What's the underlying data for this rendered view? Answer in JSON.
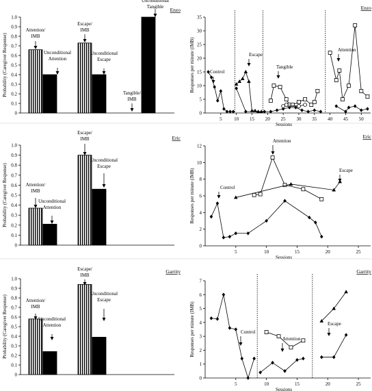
{
  "chart_data": [
    {
      "type": "bar",
      "participant": "Enzo",
      "ylabel": "Probability (Caregiver Response)",
      "ylim": [
        0,
        1.0
      ],
      "yticks": [
        "0",
        "0.1",
        "0.2",
        "0.3",
        "0.4",
        "0.5",
        "0.6",
        "0.7",
        "0.8",
        "0.9",
        "1.0"
      ],
      "bars": [
        {
          "label": "Attention/ IMB",
          "value": 0.66,
          "pattern": "striped"
        },
        {
          "label": "Unconditional Attention",
          "value": 0.4,
          "pattern": "solid"
        },
        {
          "label": "Escape/ IMB",
          "value": 0.73,
          "pattern": "striped"
        },
        {
          "label": "Unconditional Escape",
          "value": 0.4,
          "pattern": "solid"
        },
        {
          "label": "Tangible/ IMB",
          "value": 0.0,
          "pattern": "striped"
        },
        {
          "label": "Unconditional Tangible",
          "value": 1.0,
          "pattern": "solid"
        }
      ]
    },
    {
      "type": "line",
      "participant": "Enzo",
      "xlabel": "Sessions",
      "ylabel": "Responses per minute (IMB)",
      "ylim": [
        0,
        35
      ],
      "xlim": [
        0,
        53
      ],
      "yticks": [
        "0",
        "5",
        "10",
        "15",
        "20",
        "25",
        "30",
        "35"
      ],
      "xticks": [
        "5",
        "10",
        "15",
        "20",
        "25",
        "30",
        "35",
        "40",
        "45",
        "50"
      ],
      "phase_lines": [
        9.5,
        18.5,
        38.5
      ],
      "annotations": [
        "Control",
        "Escape",
        "Tangible",
        "Attention"
      ],
      "series": [
        {
          "marker": "diamond",
          "points": [
            [
              1,
              15
            ],
            [
              2,
              13
            ],
            [
              3,
              9.5
            ],
            [
              4,
              4.5
            ],
            [
              5,
              8
            ],
            [
              6,
              1.5
            ],
            [
              7,
              0.5
            ],
            [
              8,
              0.5
            ],
            [
              9,
              0.5
            ]
          ]
        },
        {
          "marker": "triangle",
          "points": [
            [
              10,
              10.5
            ],
            [
              11,
              11.5
            ],
            [
              12,
              12.5
            ],
            [
              13,
              15
            ],
            [
              14,
              11.5
            ],
            [
              15,
              0.8
            ],
            [
              16,
              0.8
            ],
            [
              17,
              0.5
            ],
            [
              18,
              0.5
            ]
          ]
        },
        {
          "marker": "diamond",
          "points": [
            [
              10,
              9
            ],
            [
              13,
              0.5
            ],
            [
              19,
              0.5
            ],
            [
              21,
              0.5
            ],
            [
              23,
              1
            ],
            [
              25,
              1.5
            ],
            [
              27,
              2
            ],
            [
              29,
              2
            ],
            [
              31,
              1
            ],
            [
              33,
              0.5
            ],
            [
              35,
              1
            ],
            [
              37,
              0.5
            ]
          ]
        },
        {
          "marker": "square_open",
          "points": [
            [
              21,
              4.5
            ],
            [
              22,
              10
            ],
            [
              24,
              9.5
            ],
            [
              26,
              5
            ],
            [
              27,
              3
            ],
            [
              28,
              3
            ],
            [
              30,
              4
            ],
            [
              32,
              5
            ],
            [
              34,
              3
            ],
            [
              35,
              4
            ],
            [
              36,
              8
            ]
          ]
        },
        {
          "marker": "circle_open",
          "points": [
            [
              25,
              2.5
            ],
            [
              26,
              3
            ],
            [
              30,
              2.5
            ],
            [
              32,
              3
            ]
          ]
        },
        {
          "marker": "square_open",
          "points": [
            [
              40,
              22
            ],
            [
              42,
              12
            ],
            [
              43,
              15.5
            ],
            [
              44,
              5
            ],
            [
              46,
              10
            ],
            [
              48,
              32
            ],
            [
              50,
              8
            ],
            [
              52,
              6
            ]
          ]
        },
        {
          "marker": "diamond",
          "points": [
            [
              42,
              2.5
            ],
            [
              45,
              0.5
            ],
            [
              46,
              2
            ],
            [
              48,
              2.5
            ],
            [
              50,
              1
            ],
            [
              52,
              1.5
            ]
          ]
        }
      ]
    },
    {
      "type": "bar",
      "participant": "Eric",
      "ylabel": "Probability (Caregiver Response)",
      "ylim": [
        0,
        1.0
      ],
      "yticks": [
        "0",
        "0.1",
        "0.2",
        "0.3",
        "0.4",
        "0.5",
        "0.6",
        "0.7",
        "0.8",
        "0.9",
        "1.0"
      ],
      "bars": [
        {
          "label": "Attention/ IMB",
          "value": 0.37,
          "pattern": "striped"
        },
        {
          "label": "Unconditional Attention",
          "value": 0.21,
          "pattern": "solid"
        },
        {
          "label": "Escape/ IMB",
          "value": 0.9,
          "pattern": "striped"
        },
        {
          "label": "Unconditional Escape",
          "value": 0.56,
          "pattern": "solid"
        }
      ]
    },
    {
      "type": "line",
      "participant": "Eric",
      "xlabel": "Sessions",
      "ylabel": "Responses per minute (IMB)",
      "ylim": [
        0,
        12
      ],
      "xlim": [
        0,
        27
      ],
      "yticks": [
        "0",
        "2",
        "4",
        "6",
        "8",
        "10",
        "12"
      ],
      "xticks": [
        "5",
        "10",
        "15",
        "20",
        "25"
      ],
      "annotations": [
        "Control",
        "Attention",
        "Escape"
      ],
      "series": [
        {
          "marker": "diamond",
          "points": [
            [
              1,
              3.5
            ],
            [
              2,
              5.1
            ],
            [
              3,
              1
            ],
            [
              4,
              1.1
            ],
            [
              5,
              1.5
            ],
            [
              7,
              1.5
            ],
            [
              10,
              3
            ],
            [
              13,
              5.4
            ],
            [
              17,
              3.4
            ],
            [
              18,
              2.8
            ],
            [
              19,
              1.1
            ]
          ]
        },
        {
          "marker": "square_open",
          "points": [
            [
              8,
              6.1
            ],
            [
              9,
              6.2
            ],
            [
              11,
              10.6
            ],
            [
              13,
              7.3
            ],
            [
              16,
              6.8
            ],
            [
              19,
              5.6
            ]
          ]
        },
        {
          "marker": "triangle",
          "points": [
            [
              5,
              5.8
            ],
            [
              14,
              7.4
            ],
            [
              21,
              6.7
            ],
            [
              22,
              7.7
            ]
          ]
        }
      ]
    },
    {
      "type": "bar",
      "participant": "Garrity",
      "ylabel": "Probability (Caregiver Response)",
      "ylim": [
        0,
        1.0
      ],
      "yticks": [
        "0",
        "0.1",
        "0.2",
        "0.3",
        "0.4",
        "0.5",
        "0.6",
        "0.7",
        "0.8",
        "0.9",
        "1.0"
      ],
      "bars": [
        {
          "label": "Attention/ IMB",
          "value": 0.58,
          "pattern": "striped"
        },
        {
          "label": "Unconditional Attention",
          "value": 0.24,
          "pattern": "solid"
        },
        {
          "label": "Escape/ IMB",
          "value": 0.94,
          "pattern": "striped"
        },
        {
          "label": "Unconditional Escape",
          "value": 0.39,
          "pattern": "solid"
        }
      ]
    },
    {
      "type": "line",
      "participant": "Garrity",
      "xlabel": "Sessions",
      "ylabel": "Responses per minute (IMB)",
      "ylim": [
        0,
        7
      ],
      "xlim": [
        0,
        27
      ],
      "yticks": [
        "0",
        "1",
        "2",
        "3",
        "4",
        "5",
        "6",
        "7"
      ],
      "xticks": [
        "5",
        "10",
        "15",
        "20",
        "25"
      ],
      "phase_lines": [
        8.5,
        17.5
      ],
      "annotations": [
        "Control",
        "Attention",
        "Escape"
      ],
      "series": [
        {
          "marker": "diamond",
          "points": [
            [
              1,
              4.3
            ],
            [
              2,
              4.25
            ],
            [
              3,
              6
            ],
            [
              4,
              3.6
            ],
            [
              5,
              3.5
            ],
            [
              6,
              1.4
            ],
            [
              7,
              0
            ],
            [
              8,
              1.4
            ]
          ]
        },
        {
          "marker": "diamond",
          "points": [
            [
              9,
              0.4
            ],
            [
              11,
              1.1
            ],
            [
              13,
              0.5
            ],
            [
              15,
              1.3
            ],
            [
              16,
              1.4
            ]
          ]
        },
        {
          "marker": "square_open",
          "points": [
            [
              10,
              3.3
            ],
            [
              12,
              3
            ],
            [
              14,
              2.2
            ],
            [
              16,
              2.7
            ]
          ]
        },
        {
          "marker": "diamond",
          "points": [
            [
              19,
              1.5
            ],
            [
              21,
              1.5
            ],
            [
              23,
              3.1
            ]
          ]
        },
        {
          "marker": "triangle",
          "points": [
            [
              19,
              4.1
            ],
            [
              21,
              5
            ],
            [
              23,
              6.2
            ]
          ]
        }
      ]
    }
  ]
}
